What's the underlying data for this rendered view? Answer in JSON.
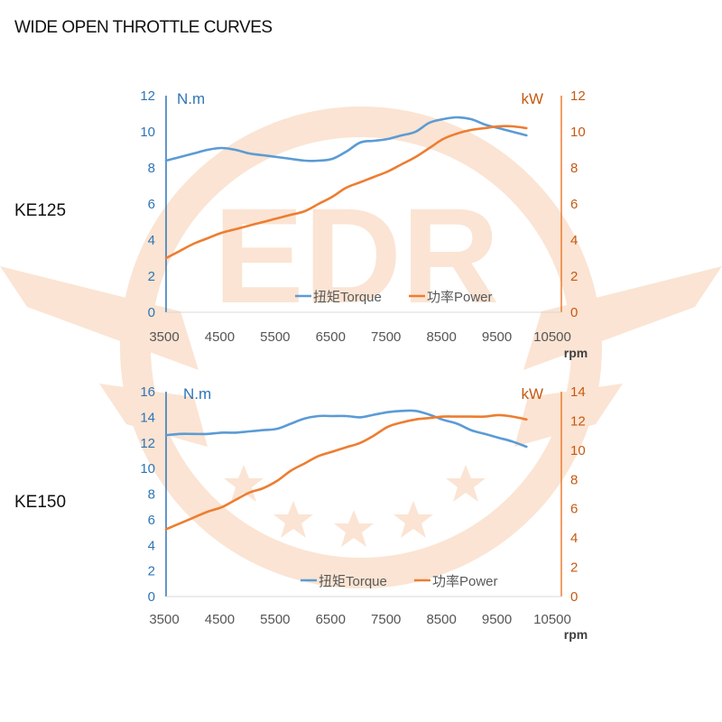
{
  "page": {
    "title": "WIDE OPEN THROTTLE CURVES"
  },
  "watermark": {
    "text": "EDR",
    "color": "#f9d9c2"
  },
  "colors": {
    "torque": "#5b9bd5",
    "power": "#ed7d31",
    "axis_left": "#2e75b6",
    "axis_right": "#c55a11",
    "tick_text": "#555555"
  },
  "chart_data": [
    {
      "type": "line",
      "model_label": "KE125",
      "x_ticks": [
        3500,
        4500,
        5500,
        6500,
        7500,
        8500,
        9500,
        10500
      ],
      "xlim": [
        3500,
        10500
      ],
      "xlabel": "rpm",
      "y_left": {
        "label": "N.m",
        "lim": [
          0,
          12
        ],
        "ticks": [
          0,
          2,
          4,
          6,
          8,
          10,
          12
        ]
      },
      "y_right": {
        "label": "kW",
        "lim": [
          0,
          12
        ],
        "ticks": [
          0,
          2,
          4,
          6,
          8,
          10,
          12
        ]
      },
      "legend_position": "bottom-right",
      "series": [
        {
          "name": "扭矩Torque",
          "axis": "left",
          "x": [
            3500,
            3750,
            4000,
            4250,
            4500,
            4750,
            5000,
            5250,
            5500,
            5750,
            6000,
            6250,
            6500,
            6750,
            7000,
            7250,
            7500,
            7750,
            8000,
            8250,
            8500,
            8750,
            9000,
            9250,
            9500,
            9750,
            10000
          ],
          "y": [
            8.4,
            8.6,
            8.8,
            9.0,
            9.1,
            9.0,
            8.8,
            8.7,
            8.6,
            8.5,
            8.4,
            8.4,
            8.5,
            8.9,
            9.4,
            9.5,
            9.6,
            9.8,
            10.0,
            10.5,
            10.7,
            10.8,
            10.7,
            10.4,
            10.2,
            10.0,
            9.8
          ]
        },
        {
          "name": "功率Power",
          "axis": "right",
          "x": [
            3500,
            3750,
            4000,
            4250,
            4500,
            4750,
            5000,
            5250,
            5500,
            5750,
            6000,
            6250,
            6500,
            6750,
            7000,
            7250,
            7500,
            7750,
            8000,
            8250,
            8500,
            8750,
            9000,
            9250,
            9500,
            9750,
            10000
          ],
          "y": [
            3.0,
            3.4,
            3.8,
            4.1,
            4.4,
            4.6,
            4.8,
            5.0,
            5.2,
            5.4,
            5.6,
            6.0,
            6.4,
            6.9,
            7.2,
            7.5,
            7.8,
            8.2,
            8.6,
            9.1,
            9.6,
            9.9,
            10.1,
            10.2,
            10.3,
            10.3,
            10.2
          ]
        }
      ]
    },
    {
      "type": "line",
      "model_label": "KE150",
      "x_ticks": [
        3500,
        4500,
        5500,
        6500,
        7500,
        8500,
        9500,
        10500
      ],
      "xlim": [
        3500,
        10500
      ],
      "xlabel": "rpm",
      "y_left": {
        "label": "N.m",
        "lim": [
          0,
          16
        ],
        "ticks": [
          0,
          2,
          4,
          6,
          8,
          10,
          12,
          14,
          16
        ]
      },
      "y_right": {
        "label": "kW",
        "lim": [
          0,
          14
        ],
        "ticks": [
          0,
          2,
          4,
          6,
          8,
          10,
          12,
          14
        ]
      },
      "legend_position": "bottom-right",
      "series": [
        {
          "name": "扭矩Torque",
          "axis": "left",
          "x": [
            3500,
            3750,
            4000,
            4250,
            4500,
            4750,
            5000,
            5250,
            5500,
            5750,
            6000,
            6250,
            6500,
            6750,
            7000,
            7250,
            7500,
            7750,
            8000,
            8250,
            8500,
            8750,
            9000,
            9250,
            9500,
            9750,
            10000
          ],
          "y": [
            12.6,
            12.7,
            12.7,
            12.7,
            12.8,
            12.8,
            12.9,
            13.0,
            13.1,
            13.5,
            13.9,
            14.1,
            14.1,
            14.1,
            14.0,
            14.2,
            14.4,
            14.5,
            14.5,
            14.2,
            13.8,
            13.5,
            13.0,
            12.7,
            12.4,
            12.1,
            11.7
          ]
        },
        {
          "name": "功率Power",
          "axis": "right",
          "x": [
            3500,
            3750,
            4000,
            4250,
            4500,
            4750,
            5000,
            5250,
            5500,
            5750,
            6000,
            6250,
            6500,
            6750,
            7000,
            7250,
            7500,
            7750,
            8000,
            8250,
            8500,
            8750,
            9000,
            9250,
            9500,
            9750,
            10000
          ],
          "y": [
            4.6,
            5.0,
            5.4,
            5.8,
            6.1,
            6.6,
            7.1,
            7.4,
            7.9,
            8.6,
            9.1,
            9.6,
            9.9,
            10.2,
            10.5,
            11.0,
            11.6,
            11.9,
            12.1,
            12.2,
            12.3,
            12.3,
            12.3,
            12.3,
            12.4,
            12.3,
            12.1
          ]
        }
      ]
    }
  ]
}
